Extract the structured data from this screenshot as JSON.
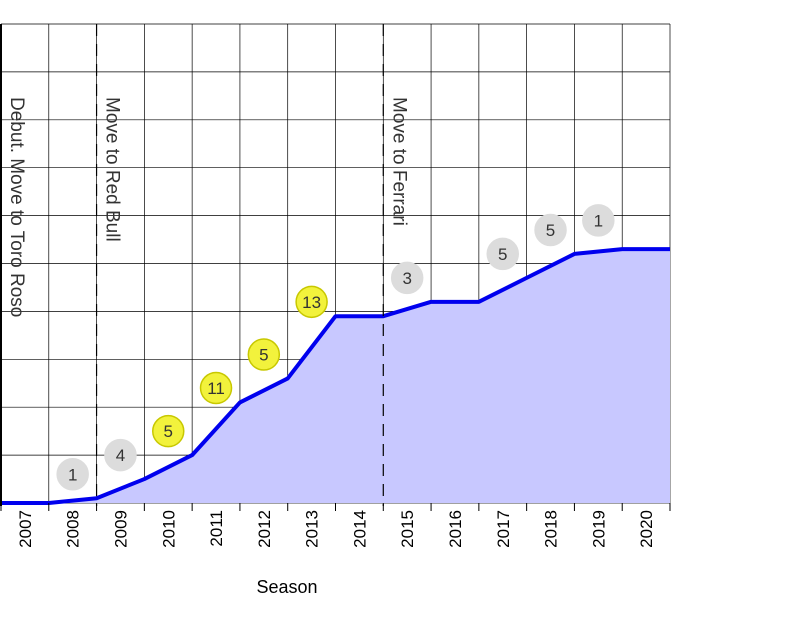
{
  "chart_data": {
    "type": "area",
    "xlabel": "Season",
    "ylabel": "",
    "title": "",
    "grid": true,
    "x": [
      "2007",
      "2008",
      "2009",
      "2010",
      "2011",
      "2012",
      "2013",
      "2014",
      "2015",
      "2016",
      "2017",
      "2018",
      "2019",
      "2020"
    ],
    "x_extent": [
      2007,
      2021
    ],
    "ylim": [
      0,
      10
    ],
    "series": [
      {
        "color": "#0000ee",
        "fill": "#c8c8ff",
        "points": [
          [
            2007.0,
            0.0
          ],
          [
            2008.0,
            0.0
          ],
          [
            2009.0,
            0.1
          ],
          [
            2010.0,
            0.5
          ],
          [
            2011.0,
            1.0
          ],
          [
            2012.0,
            2.1
          ],
          [
            2013.0,
            2.6
          ],
          [
            2014.0,
            3.9
          ],
          [
            2015.0,
            3.9
          ],
          [
            2016.0,
            4.2
          ],
          [
            2017.0,
            4.2
          ],
          [
            2018.0,
            4.7
          ],
          [
            2019.0,
            5.2
          ],
          [
            2020.0,
            5.3
          ],
          [
            2021.0,
            5.3
          ]
        ]
      }
    ],
    "events": [
      {
        "x": 2007.0,
        "label": "Debut. Move to Toro Roso",
        "style": "solid"
      },
      {
        "x": 2009.0,
        "label": "Move to Red Bull",
        "style": "dashed"
      },
      {
        "x": 2015.0,
        "label": "Move to Ferrari",
        "style": "dashed"
      }
    ],
    "badges": [
      {
        "season": "2008",
        "value": "1",
        "level": 0.6,
        "color": "#dcdcdc",
        "stroke": "#dcdcdc"
      },
      {
        "season": "2009",
        "value": "4",
        "level": 1.0,
        "color": "#dcdcdc",
        "stroke": "#dcdcdc"
      },
      {
        "season": "2010",
        "value": "5",
        "level": 1.5,
        "color": "#f2f23c",
        "stroke": "#c8c800"
      },
      {
        "season": "2011",
        "value": "11",
        "level": 2.4,
        "color": "#f2f23c",
        "stroke": "#c8c800"
      },
      {
        "season": "2012",
        "value": "5",
        "level": 3.1,
        "color": "#f2f23c",
        "stroke": "#c8c800"
      },
      {
        "season": "2013",
        "value": "13",
        "level": 4.2,
        "color": "#f2f23c",
        "stroke": "#c8c800"
      },
      {
        "season": "2015",
        "value": "3",
        "level": 4.7,
        "color": "#dcdcdc",
        "stroke": "#dcdcdc"
      },
      {
        "season": "2017",
        "value": "5",
        "level": 5.2,
        "color": "#dcdcdc",
        "stroke": "#dcdcdc"
      },
      {
        "season": "2018",
        "value": "5",
        "level": 5.7,
        "color": "#dcdcdc",
        "stroke": "#dcdcdc"
      },
      {
        "season": "2019",
        "value": "1",
        "level": 5.9,
        "color": "#dcdcdc",
        "stroke": "#dcdcdc"
      }
    ]
  }
}
